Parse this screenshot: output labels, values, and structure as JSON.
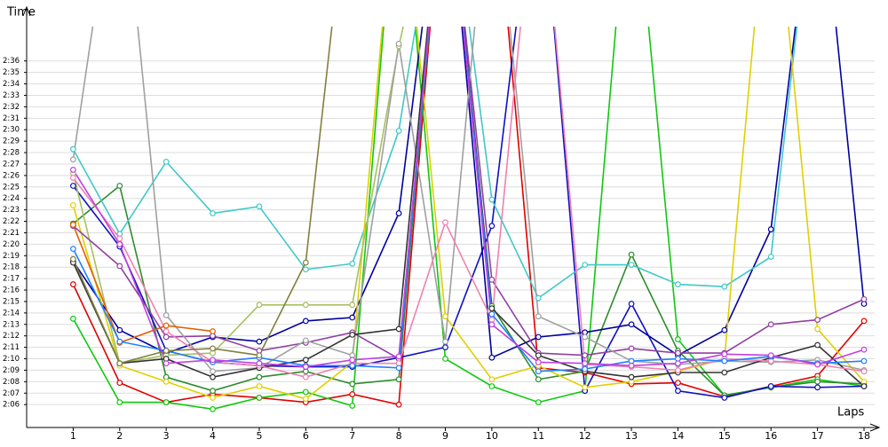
{
  "chart_data": {
    "type": "line",
    "y_label": "Time",
    "x_label": "Laps",
    "x": [
      1,
      2,
      3,
      4,
      5,
      6,
      7,
      8,
      9,
      10,
      11,
      12,
      13,
      14,
      15,
      16,
      17,
      18
    ],
    "xlim": [
      0,
      18
    ],
    "xticks": [
      1,
      2,
      3,
      4,
      5,
      6,
      7,
      8,
      9,
      10,
      11,
      12,
      13,
      14,
      15,
      16,
      17,
      18
    ],
    "ylim": [
      124,
      159
    ],
    "yticks": [
      {
        "value": 126,
        "label": "2:06"
      },
      {
        "value": 127,
        "label": "2:07"
      },
      {
        "value": 128,
        "label": "2:08"
      },
      {
        "value": 129,
        "label": "2:09"
      },
      {
        "value": 130,
        "label": "2:10"
      },
      {
        "value": 131,
        "label": "2:11"
      },
      {
        "value": 132,
        "label": "2:12"
      },
      {
        "value": 133,
        "label": "2:13"
      },
      {
        "value": 134,
        "label": "2:14"
      },
      {
        "value": 135,
        "label": "2:15"
      },
      {
        "value": 136,
        "label": "2:16"
      },
      {
        "value": 137,
        "label": "2:17"
      },
      {
        "value": 138,
        "label": "2:18"
      },
      {
        "value": 139,
        "label": "2:19"
      },
      {
        "value": 140,
        "label": "2:20"
      },
      {
        "value": 141,
        "label": "2:21"
      },
      {
        "value": 142,
        "label": "2:22"
      },
      {
        "value": 143,
        "label": "2:23"
      },
      {
        "value": 144,
        "label": "2:24"
      },
      {
        "value": 145,
        "label": "2:25"
      },
      {
        "value": 146,
        "label": "2:26"
      },
      {
        "value": 147,
        "label": "2:27"
      },
      {
        "value": 148,
        "label": "2:28"
      },
      {
        "value": 149,
        "label": "2:29"
      },
      {
        "value": 150,
        "label": "2:30"
      },
      {
        "value": 151,
        "label": "2:31"
      },
      {
        "value": 152,
        "label": "2:32"
      },
      {
        "value": 153,
        "label": "2:33"
      },
      {
        "value": 154,
        "label": "2:34"
      },
      {
        "value": 155,
        "label": "2:35"
      },
      {
        "value": 156,
        "label": "2:36"
      }
    ],
    "grid": true,
    "series": [
      {
        "color": "#e00000",
        "values": [
          136.5,
          127.9,
          126.2,
          126.9,
          126.6,
          126.2,
          126.9,
          126.0,
          175,
          175,
          129.2,
          128.8,
          127.8,
          127.9,
          126.7,
          127.6,
          128.5,
          133.3
        ]
      },
      {
        "color": "#10c810",
        "values": [
          133.5,
          126.2,
          126.2,
          125.6,
          126.6,
          127.1,
          125.9,
          175,
          130.0,
          127.6,
          126.2,
          127.2,
          175,
          131.7,
          126.8,
          127.5,
          128.2,
          127.6
        ]
      },
      {
        "color": "#2e8b2e",
        "values": [
          141.8,
          145.1,
          128.4,
          127.2,
          128.4,
          128.9,
          127.8,
          128.2,
          175,
          134.6,
          128.2,
          128.9,
          139.1,
          130.7,
          126.8,
          127.5,
          128.0,
          127.8
        ]
      },
      {
        "color": "#1010c0",
        "values": [
          145.1,
          139.8,
          130.7,
          129.7,
          129.4,
          129.3,
          129.3,
          130.1,
          131.0,
          141.6,
          175,
          127.2,
          134.8,
          127.2,
          126.6,
          127.6,
          127.5,
          127.6
        ]
      },
      {
        "color": "#0000a0",
        "values": [
          138.5,
          132.5,
          130.5,
          131.9,
          131.5,
          133.3,
          133.6,
          142.7,
          175,
          130.1,
          131.9,
          132.3,
          133.0,
          130.3,
          132.5,
          141.3,
          175,
          134.8
        ]
      },
      {
        "color": "#40c8c8",
        "values": [
          148.3,
          140.9,
          147.2,
          142.7,
          143.3,
          137.8,
          138.3,
          149.9,
          175,
          143.9,
          135.3,
          138.2,
          138.2,
          136.5,
          136.3,
          138.9,
          175,
          null
        ]
      },
      {
        "color": "#e0d000",
        "values": [
          143.4,
          129.4,
          128.0,
          126.6,
          127.6,
          126.5,
          129.7,
          175,
          133.7,
          128.2,
          129.4,
          127.5,
          128.0,
          128.9,
          130.0,
          175,
          132.6,
          128.0
        ]
      },
      {
        "color": "#a8c060",
        "values": [
          146.2,
          129.6,
          130.3,
          130.5,
          134.7,
          134.7,
          134.7,
          157.3,
          175,
          null,
          null,
          null,
          null,
          null,
          null,
          null,
          null,
          null
        ]
      },
      {
        "color": "#9040a0",
        "values": [
          141.6,
          138.1,
          131.9,
          132.0,
          130.7,
          131.4,
          132.3,
          130.0,
          175,
          136.9,
          130.5,
          130.3,
          130.9,
          130.5,
          130.5,
          133.0,
          133.4,
          135.2
        ]
      },
      {
        "color": "#a0a0a0",
        "values": [
          147.4,
          175,
          133.8,
          128.9,
          129.2,
          131.6,
          130.3,
          157.5,
          131.5,
          175,
          133.7,
          131.9,
          129.8,
          129.5,
          129.8,
          129.7,
          129.9,
          129.0
        ]
      },
      {
        "color": "#333333",
        "values": [
          138.4,
          129.6,
          130.0,
          128.4,
          129.2,
          129.9,
          132.1,
          132.6,
          175,
          134.4,
          130.3,
          128.9,
          128.4,
          128.8,
          128.8,
          130.1,
          131.2,
          127.6
        ]
      },
      {
        "color": "#f080b0",
        "values": [
          145.8,
          140.5,
          132.4,
          129.7,
          129.4,
          128.4,
          129.6,
          129.6,
          141.9,
          133.4,
          175,
          129.5,
          129.3,
          129.0,
          130.0,
          129.8,
          129.5,
          128.9
        ]
      },
      {
        "color": "#e06000",
        "values": [
          141.7,
          131.4,
          132.9,
          132.4,
          null,
          null,
          null,
          null,
          null,
          null,
          null,
          null,
          null,
          null,
          null,
          null,
          null,
          null
        ]
      },
      {
        "color": "#2080ff",
        "values": [
          139.6,
          131.5,
          130.7,
          129.7,
          130.1,
          129.4,
          129.4,
          129.2,
          175,
          133.9,
          128.9,
          129.1,
          129.8,
          130.0,
          129.8,
          130.2,
          129.6,
          129.8
        ]
      },
      {
        "color": "#c040e0",
        "values": [
          146.5,
          140.0,
          129.6,
          129.9,
          129.6,
          129.3,
          129.9,
          130.2,
          175,
          133.0,
          129.7,
          129.6,
          129.4,
          129.6,
          130.4,
          130.3,
          129.5,
          130.8
        ]
      },
      {
        "color": "#808040",
        "values": [
          138.7,
          129.6,
          130.7,
          130.9,
          130.3,
          138.4,
          175,
          null,
          null,
          null,
          null,
          null,
          null,
          null,
          null,
          null,
          null,
          null
        ]
      }
    ]
  }
}
